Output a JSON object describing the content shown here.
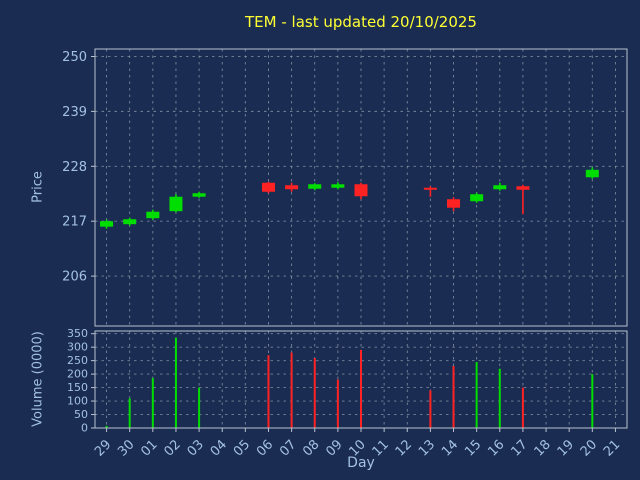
{
  "chart_data": {
    "type": "candlestick",
    "title": "TEM - last updated 20/10/2025",
    "xlabel": "Day",
    "categories": [
      "29",
      "30",
      "01",
      "02",
      "03",
      "04",
      "05",
      "06",
      "07",
      "08",
      "09",
      "10",
      "11",
      "12",
      "13",
      "14",
      "15",
      "16",
      "17",
      "18",
      "19",
      "20",
      "21"
    ],
    "price_panel": {
      "ylabel": "Price",
      "yticks": [
        250,
        239,
        228,
        217,
        206
      ],
      "ylim": [
        196,
        251.5
      ],
      "grid": true,
      "candles": [
        {
          "day": "29",
          "open": 215.9,
          "high": 217.3,
          "low": 215.5,
          "close": 217.0
        },
        {
          "day": "30",
          "open": 216.4,
          "high": 217.7,
          "low": 216.1,
          "close": 217.4
        },
        {
          "day": "01",
          "open": 217.6,
          "high": 219.3,
          "low": 217.3,
          "close": 218.9
        },
        {
          "day": "02",
          "open": 219.0,
          "high": 222.4,
          "low": 218.8,
          "close": 221.9
        },
        {
          "day": "03",
          "open": 221.9,
          "high": 222.9,
          "low": 221.7,
          "close": 222.6
        },
        {
          "day": "06",
          "open": 224.7,
          "high": 224.9,
          "low": 222.6,
          "close": 222.9
        },
        {
          "day": "07",
          "open": 224.2,
          "high": 224.7,
          "low": 222.9,
          "close": 223.4
        },
        {
          "day": "08",
          "open": 223.5,
          "high": 224.6,
          "low": 223.2,
          "close": 224.4
        },
        {
          "day": "09",
          "open": 223.7,
          "high": 224.8,
          "low": 223.4,
          "close": 224.4
        },
        {
          "day": "10",
          "open": 224.4,
          "high": 224.7,
          "low": 221.4,
          "close": 222.0
        },
        {
          "day": "13",
          "open": 223.7,
          "high": 224.0,
          "low": 221.9,
          "close": 223.4
        },
        {
          "day": "14",
          "open": 221.4,
          "high": 221.8,
          "low": 219.0,
          "close": 219.7
        },
        {
          "day": "15",
          "open": 221.0,
          "high": 222.7,
          "low": 220.7,
          "close": 222.4
        },
        {
          "day": "16",
          "open": 223.4,
          "high": 224.7,
          "low": 223.1,
          "close": 224.2
        },
        {
          "day": "17",
          "open": 224.0,
          "high": 224.3,
          "low": 218.4,
          "close": 223.3
        },
        {
          "day": "20",
          "open": 225.8,
          "high": 227.8,
          "low": 225.5,
          "close": 227.3
        }
      ]
    },
    "volume_panel": {
      "ylabel": "Volume (0000)",
      "yticks": [
        350,
        300,
        250,
        200,
        150,
        100,
        50,
        0
      ],
      "ylim": [
        0,
        360
      ],
      "grid": true,
      "bars": [
        {
          "day": "29",
          "value": 8,
          "color": "up"
        },
        {
          "day": "30",
          "value": 110,
          "color": "up"
        },
        {
          "day": "01",
          "value": 185,
          "color": "up"
        },
        {
          "day": "02",
          "value": 335,
          "color": "up"
        },
        {
          "day": "03",
          "value": 150,
          "color": "up"
        },
        {
          "day": "06",
          "value": 270,
          "color": "down"
        },
        {
          "day": "07",
          "value": 280,
          "color": "down"
        },
        {
          "day": "08",
          "value": 260,
          "color": "down"
        },
        {
          "day": "09",
          "value": 180,
          "color": "down"
        },
        {
          "day": "10",
          "value": 290,
          "color": "down"
        },
        {
          "day": "13",
          "value": 140,
          "color": "down"
        },
        {
          "day": "14",
          "value": 230,
          "color": "down"
        },
        {
          "day": "15",
          "value": 245,
          "color": "up"
        },
        {
          "day": "16",
          "value": 220,
          "color": "up"
        },
        {
          "day": "17",
          "value": 150,
          "color": "down"
        },
        {
          "day": "20",
          "value": 200,
          "color": "up"
        }
      ]
    },
    "colors": {
      "background": "#1a2c52",
      "up": "#00dd00",
      "down": "#ff2222",
      "grid": "#8a97a8",
      "tick_label": "#a3c1e0",
      "axis_label": "#a3c1e0",
      "title": "#ffff33",
      "spine": "#b9c2cf"
    }
  }
}
